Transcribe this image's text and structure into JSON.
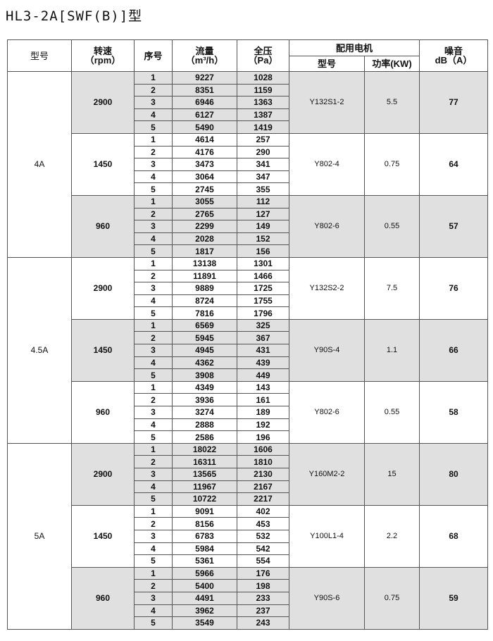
{
  "title": "HL3-2A[SWF(B)]型",
  "headers": {
    "model": "型号",
    "speed": "转速",
    "speed_unit": "（rpm）",
    "seq": "序号",
    "flow": "流量",
    "flow_unit": "（m³/h）",
    "pressure": "全压",
    "pressure_unit": "（Pa）",
    "motor": "配用电机",
    "motor_model": "型号",
    "motor_power": "功率(KW)",
    "noise": "噪音",
    "noise_unit": "dB（A）"
  },
  "shade_color": "#e0e0e0",
  "groups": [
    {
      "model": "4A",
      "speeds": [
        {
          "rpm": "2900",
          "motor": "Y132S1-2",
          "power": "5.5",
          "noise": "77",
          "shaded": true,
          "rows": [
            [
              "1",
              "9227",
              "1028"
            ],
            [
              "2",
              "8351",
              "1159"
            ],
            [
              "3",
              "6946",
              "1363"
            ],
            [
              "4",
              "6127",
              "1387"
            ],
            [
              "5",
              "5490",
              "1419"
            ]
          ]
        },
        {
          "rpm": "1450",
          "motor": "Y802-4",
          "power": "0.75",
          "noise": "64",
          "shaded": false,
          "rows": [
            [
              "1",
              "4614",
              "257"
            ],
            [
              "2",
              "4176",
              "290"
            ],
            [
              "3",
              "3473",
              "341"
            ],
            [
              "4",
              "3064",
              "347"
            ],
            [
              "5",
              "2745",
              "355"
            ]
          ]
        },
        {
          "rpm": "960",
          "motor": "Y802-6",
          "power": "0.55",
          "noise": "57",
          "shaded": true,
          "rows": [
            [
              "1",
              "3055",
              "112"
            ],
            [
              "2",
              "2765",
              "127"
            ],
            [
              "3",
              "2299",
              "149"
            ],
            [
              "4",
              "2028",
              "152"
            ],
            [
              "5",
              "1817",
              "156"
            ]
          ]
        }
      ]
    },
    {
      "model": "4.5A",
      "speeds": [
        {
          "rpm": "2900",
          "motor": "Y132S2-2",
          "power": "7.5",
          "noise": "76",
          "shaded": false,
          "rows": [
            [
              "1",
              "13138",
              "1301"
            ],
            [
              "2",
              "11891",
              "1466"
            ],
            [
              "3",
              "9889",
              "1725"
            ],
            [
              "4",
              "8724",
              "1755"
            ],
            [
              "5",
              "7816",
              "1796"
            ]
          ]
        },
        {
          "rpm": "1450",
          "motor": "Y90S-4",
          "power": "1.1",
          "noise": "66",
          "shaded": true,
          "rows": [
            [
              "1",
              "6569",
              "325"
            ],
            [
              "2",
              "5945",
              "367"
            ],
            [
              "3",
              "4945",
              "431"
            ],
            [
              "4",
              "4362",
              "439"
            ],
            [
              "5",
              "3908",
              "449"
            ]
          ]
        },
        {
          "rpm": "960",
          "motor": "Y802-6",
          "power": "0.55",
          "noise": "58",
          "shaded": false,
          "rows": [
            [
              "1",
              "4349",
              "143"
            ],
            [
              "2",
              "3936",
              "161"
            ],
            [
              "3",
              "3274",
              "189"
            ],
            [
              "4",
              "2888",
              "192"
            ],
            [
              "5",
              "2586",
              "196"
            ]
          ]
        }
      ]
    },
    {
      "model": "5A",
      "speeds": [
        {
          "rpm": "2900",
          "motor": "Y160M2-2",
          "power": "15",
          "noise": "80",
          "shaded": true,
          "rows": [
            [
              "1",
              "18022",
              "1606"
            ],
            [
              "2",
              "16311",
              "1810"
            ],
            [
              "3",
              "13565",
              "2130"
            ],
            [
              "4",
              "11967",
              "2167"
            ],
            [
              "5",
              "10722",
              "2217"
            ]
          ]
        },
        {
          "rpm": "1450",
          "motor": "Y100L1-4",
          "power": "2.2",
          "noise": "68",
          "shaded": false,
          "rows": [
            [
              "1",
              "9091",
              "402"
            ],
            [
              "2",
              "8156",
              "453"
            ],
            [
              "3",
              "6783",
              "532"
            ],
            [
              "4",
              "5984",
              "542"
            ],
            [
              "5",
              "5361",
              "554"
            ]
          ]
        },
        {
          "rpm": "960",
          "motor": "Y90S-6",
          "power": "0.75",
          "noise": "59",
          "shaded": true,
          "rows": [
            [
              "1",
              "5966",
              "176"
            ],
            [
              "2",
              "5400",
              "198"
            ],
            [
              "3",
              "4491",
              "233"
            ],
            [
              "4",
              "3962",
              "237"
            ],
            [
              "5",
              "3549",
              "243"
            ]
          ]
        }
      ]
    }
  ]
}
